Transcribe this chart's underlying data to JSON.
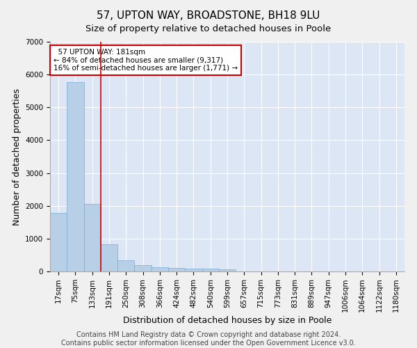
{
  "title": "57, UPTON WAY, BROADSTONE, BH18 9LU",
  "subtitle": "Size of property relative to detached houses in Poole",
  "xlabel": "Distribution of detached houses by size in Poole",
  "ylabel": "Number of detached properties",
  "footer_line1": "Contains HM Land Registry data © Crown copyright and database right 2024.",
  "footer_line2": "Contains public sector information licensed under the Open Government Licence v3.0.",
  "annotation_line1": "  57 UPTON WAY: 181sqm  ",
  "annotation_line2": "← 84% of detached houses are smaller (9,317)",
  "annotation_line3": "16% of semi-detached houses are larger (1,771) →",
  "bar_labels": [
    "17sqm",
    "75sqm",
    "133sqm",
    "191sqm",
    "250sqm",
    "308sqm",
    "366sqm",
    "424sqm",
    "482sqm",
    "540sqm",
    "599sqm",
    "657sqm",
    "715sqm",
    "773sqm",
    "831sqm",
    "889sqm",
    "947sqm",
    "1006sqm",
    "1064sqm",
    "1122sqm",
    "1180sqm"
  ],
  "bar_values": [
    1780,
    5780,
    2060,
    820,
    340,
    190,
    120,
    110,
    90,
    90,
    70,
    0,
    0,
    0,
    0,
    0,
    0,
    0,
    0,
    0,
    0
  ],
  "bar_color": "#b8cfe8",
  "bar_edge_color": "#7aaad0",
  "red_line_color": "#cc0000",
  "annotation_box_color": "#cc0000",
  "ylim": [
    0,
    7000
  ],
  "yticks": [
    0,
    1000,
    2000,
    3000,
    4000,
    5000,
    6000,
    7000
  ],
  "background_color": "#dce6f5",
  "grid_color": "#ffffff",
  "fig_facecolor": "#f0f0f0",
  "title_fontsize": 11,
  "subtitle_fontsize": 9.5,
  "axis_label_fontsize": 9,
  "tick_fontsize": 7.5,
  "footer_fontsize": 7
}
